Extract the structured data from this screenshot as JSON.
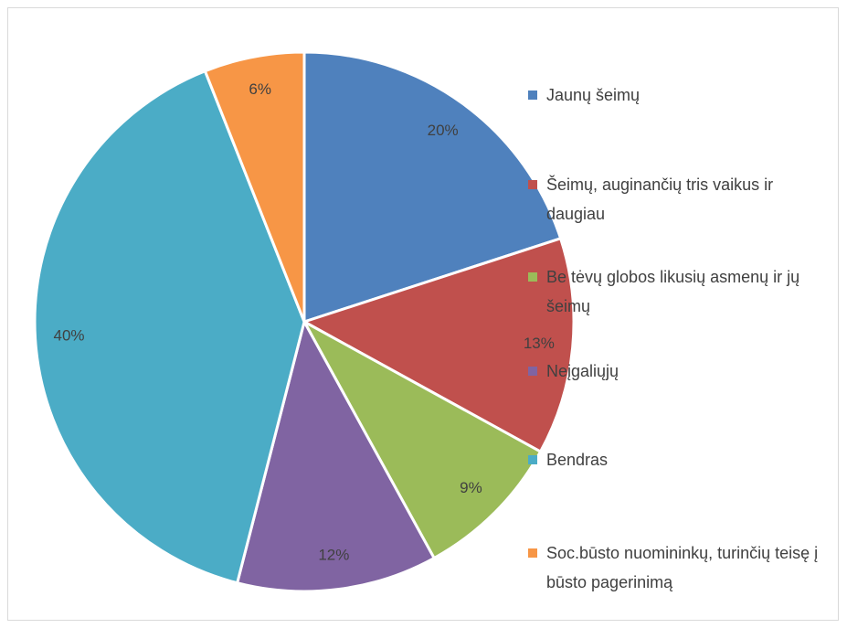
{
  "chart_data": {
    "type": "pie",
    "categories": [
      "Jaunų šeimų",
      "Šeimų, auginančių tris vaikus ir daugiau",
      "Be tėvų globos likusių asmenų ir jų šeimų",
      "Neįgaliųjų",
      "Bendras",
      "Soc.būsto nuomininkų, turinčių teisę į būsto pagerinimą"
    ],
    "values": [
      20,
      13,
      9,
      12,
      40,
      6
    ],
    "value_labels": [
      "20%",
      "13%",
      "9%",
      "12%",
      "40%",
      "6%"
    ],
    "colors": [
      "#4f81bd",
      "#c0504d",
      "#9bbb59",
      "#8064a2",
      "#4bacc6",
      "#f79646"
    ],
    "legend": "right"
  }
}
